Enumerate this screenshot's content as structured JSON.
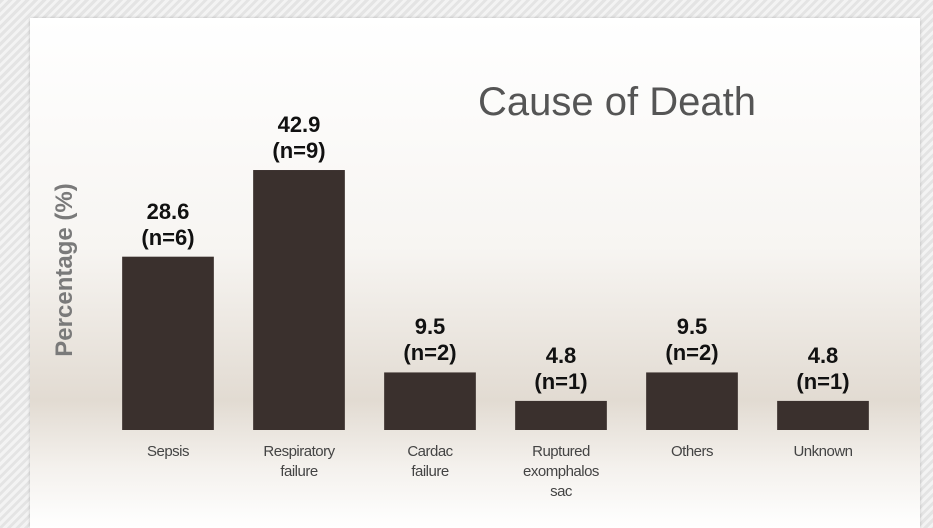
{
  "chart_data": {
    "type": "bar",
    "title": "Cause of Death",
    "ylabel": "Percentage (%)",
    "categories": [
      "Sepsis",
      "Respiratory\nfailure",
      "Cardac\nfailure",
      "Ruptured\nexomphalos\nsac",
      "Others",
      "Unknown"
    ],
    "values": [
      28.6,
      42.9,
      9.5,
      4.8,
      9.5,
      4.8
    ],
    "value_labels": [
      "28.6\n(n=6)",
      "42.9\n(n=9)",
      "9.5\n(n=2)",
      "4.8\n(n=1)",
      "9.5\n(n=2)",
      "4.8\n(n=1)"
    ],
    "color": "#3a302d",
    "ylim": [
      0,
      50
    ]
  }
}
